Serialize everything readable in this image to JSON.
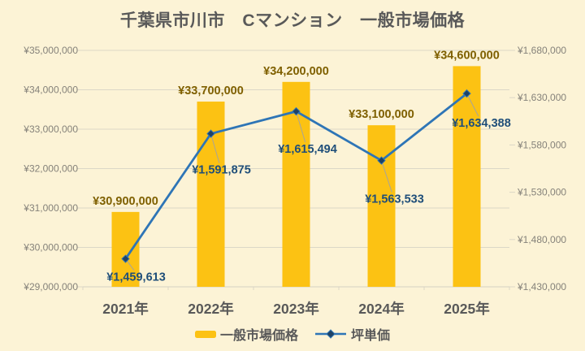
{
  "title": "千葉県市川市　Cマンション　一般市場価格",
  "chart_data": {
    "type": "combo-bar-line",
    "title": "千葉県市川市　Cマンション　一般市場価格",
    "categories": [
      "2021年",
      "2022年",
      "2023年",
      "2024年",
      "2025年"
    ],
    "series": [
      {
        "name": "一般市場価格",
        "type": "bar",
        "axis": "left",
        "values": [
          30900000,
          33700000,
          34200000,
          33100000,
          34600000
        ],
        "labels": [
          "¥30,900,000",
          "¥33,700,000",
          "¥34,200,000",
          "¥33,100,000",
          "¥34,600,000"
        ]
      },
      {
        "name": "坪単価",
        "type": "line",
        "axis": "right",
        "values": [
          1459613,
          1591875,
          1615494,
          1563533,
          1634388
        ],
        "labels": [
          "¥1,459,613",
          "¥1,591,875",
          "¥1,615,494",
          "¥1,563,533",
          "¥1,634,388"
        ]
      }
    ],
    "left_axis": {
      "min": 29000000,
      "max": 35000000,
      "tick_values": [
        35000000,
        34000000,
        33000000,
        32000000,
        31000000,
        30000000,
        29000000
      ],
      "tick_labels": [
        "¥35,000,000",
        "¥34,000,000",
        "¥33,000,000",
        "¥32,000,000",
        "¥31,000,000",
        "¥30,000,000",
        "¥29,000,000"
      ]
    },
    "right_axis": {
      "min": 1430000,
      "max": 1680000,
      "tick_values": [
        1680000,
        1630000,
        1580000,
        1530000,
        1480000,
        1430000
      ],
      "tick_labels": [
        "¥1,680,000",
        "¥1,630,000",
        "¥1,580,000",
        "¥1,530,000",
        "¥1,480,000",
        "¥1,430,000"
      ]
    },
    "legend": [
      "一般市場価格",
      "坪単価"
    ],
    "grid": true,
    "legend_position": "bottom",
    "colors": {
      "background": "#FCF3D6",
      "grid": "#DBD7C7",
      "bar": "#FCC213",
      "line": "#2E75B6",
      "marker": "#1F4265",
      "bar_label": "#7F6000",
      "line_label": "#1F4E79",
      "axis_text": "#85827A",
      "text": "#595959",
      "leader": "#A8A49A"
    }
  }
}
